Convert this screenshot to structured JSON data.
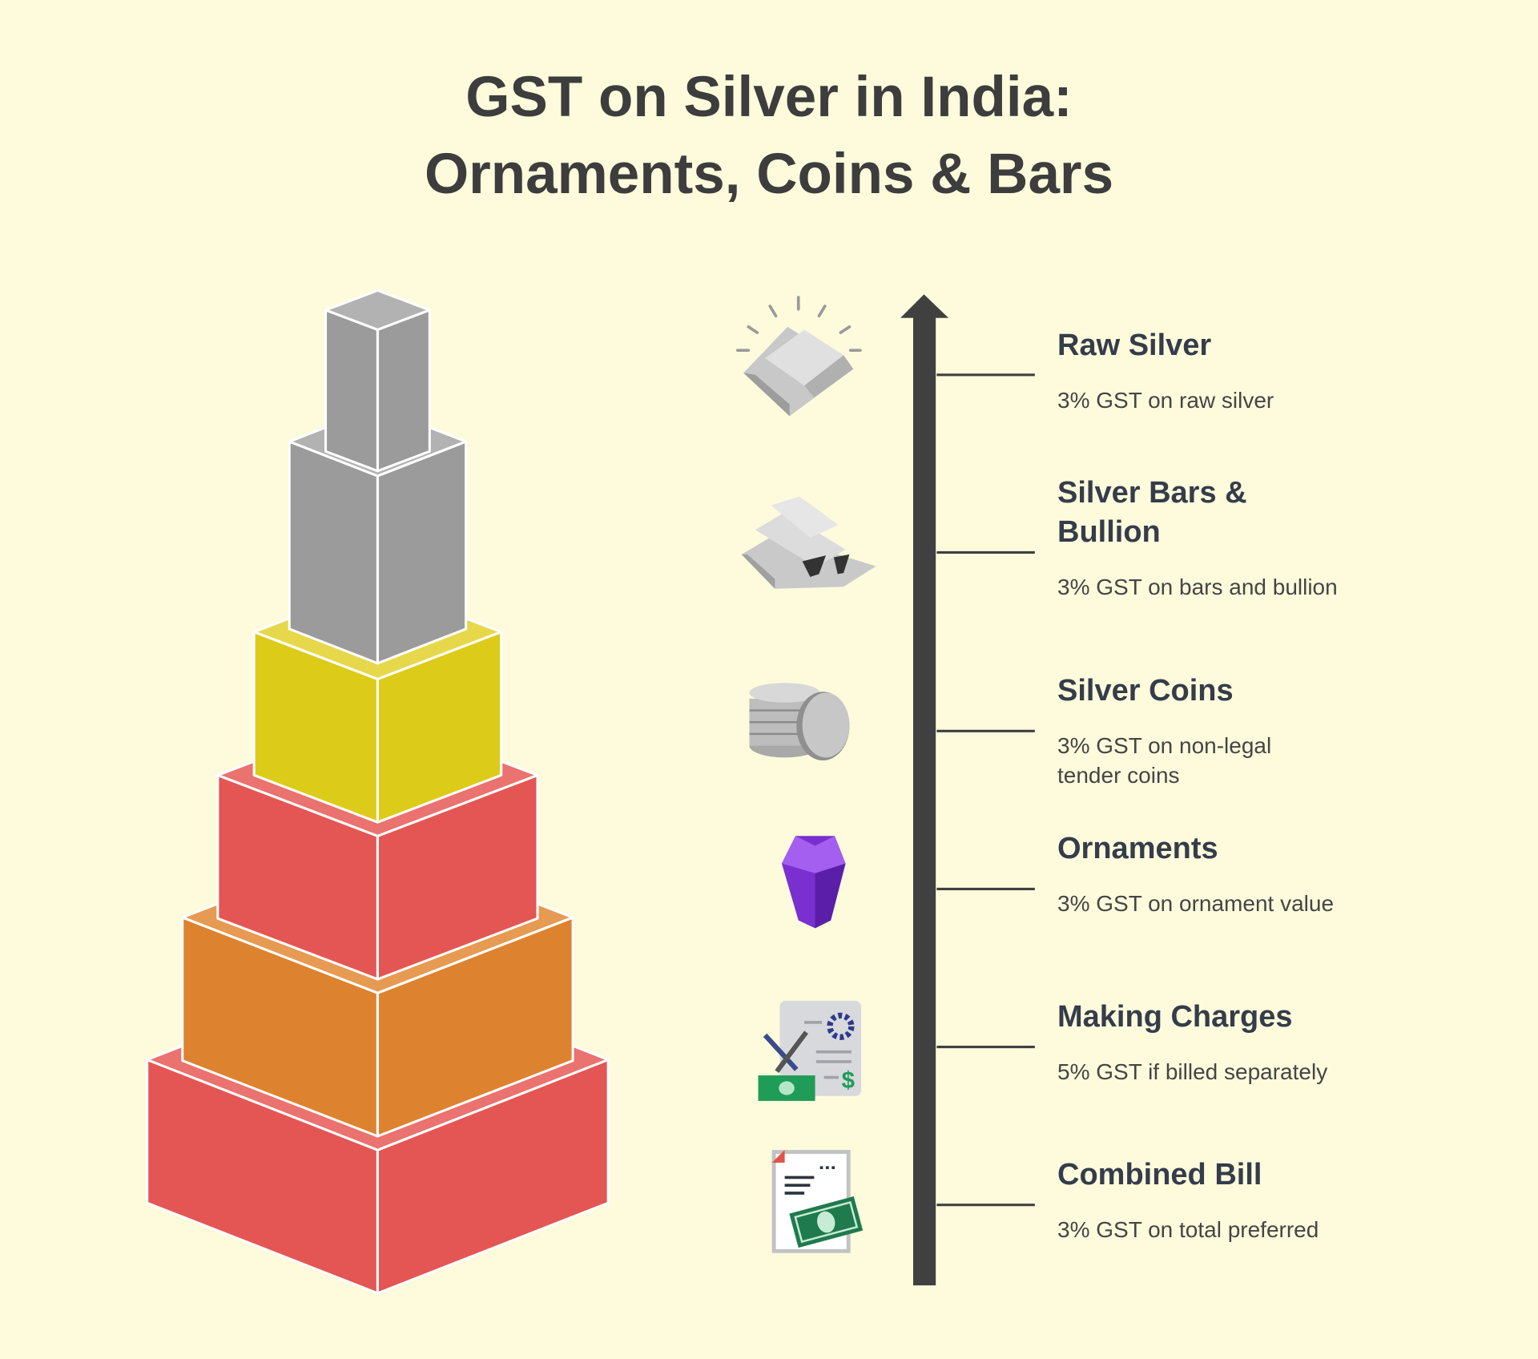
{
  "title": [
    "GST on Silver in India:",
    "Ornaments, Coins & Bars"
  ],
  "items": [
    {
      "title": "Raw Silver",
      "description": "3% GST on raw silver"
    },
    {
      "title": "Silver Bars & Bullion",
      "description": "3% GST on bars and bullion"
    },
    {
      "title": "Silver Coins",
      "description": "3% GST on non-legal tender coins"
    },
    {
      "title": "Ornaments",
      "description": "3% GST on ornament value"
    },
    {
      "title": "Making Charges",
      "description": "5% GST if billed separately"
    },
    {
      "title": "Combined Bill",
      "description": "3% GST on total preferred"
    }
  ]
}
